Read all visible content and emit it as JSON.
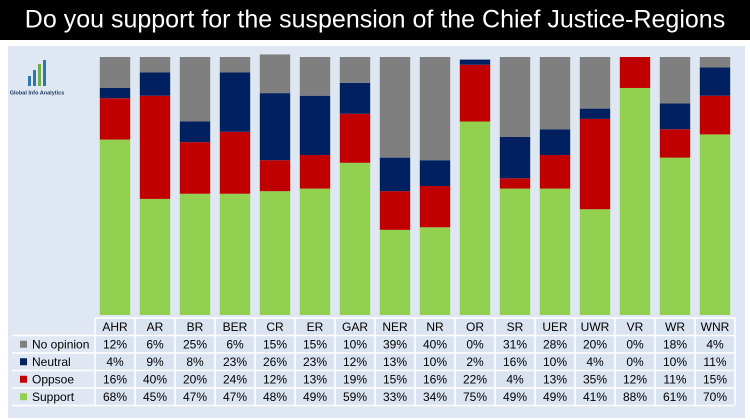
{
  "chart_data": {
    "type": "stacked-bar-table",
    "title": "Do you support for the suspension of the Chief Justice-Regions",
    "logo": "Global Info Analytics",
    "categories": [
      "AHR",
      "AR",
      "BR",
      "BER",
      "CR",
      "ER",
      "GAR",
      "NER",
      "NR",
      "OR",
      "SR",
      "UER",
      "UWR",
      "VR",
      "WR",
      "WNR"
    ],
    "ylim": [
      0,
      100
    ],
    "series": [
      {
        "name": "No opinion",
        "color": "#7f7f7f",
        "values": [
          12,
          6,
          25,
          6,
          15,
          15,
          10,
          39,
          40,
          0,
          31,
          28,
          20,
          0,
          18,
          4
        ],
        "value_labels": [
          "12%",
          "6%",
          "25%",
          "6%",
          "15%",
          "15%",
          "10%",
          "39%",
          "40%",
          "0%",
          "31%",
          "28%",
          "20%",
          "0%",
          "18%",
          "4%"
        ]
      },
      {
        "name": "Neutral",
        "color": "#002060",
        "values": [
          4,
          9,
          8,
          23,
          26,
          23,
          12,
          13,
          10,
          2,
          16,
          10,
          4,
          0,
          10,
          11
        ],
        "value_labels": [
          "4%",
          "9%",
          "8%",
          "23%",
          "26%",
          "23%",
          "12%",
          "13%",
          "10%",
          "2%",
          "16%",
          "10%",
          "4%",
          "0%",
          "10%",
          "11%"
        ]
      },
      {
        "name": "Oppsoe",
        "color": "#c00000",
        "values": [
          16,
          40,
          20,
          24,
          12,
          13,
          19,
          15,
          16,
          22,
          4,
          13,
          35,
          12,
          11,
          15
        ],
        "value_labels": [
          "16%",
          "40%",
          "20%",
          "24%",
          "12%",
          "13%",
          "19%",
          "15%",
          "16%",
          "22%",
          "4%",
          "13%",
          "35%",
          "12%",
          "11%",
          "15%"
        ]
      },
      {
        "name": "Support",
        "color": "#92d050",
        "values": [
          68,
          45,
          47,
          47,
          48,
          49,
          59,
          33,
          34,
          75,
          49,
          49,
          41,
          88,
          61,
          70
        ],
        "value_labels": [
          "68%",
          "45%",
          "47%",
          "47%",
          "48%",
          "49%",
          "59%",
          "33%",
          "34%",
          "75%",
          "49%",
          "49%",
          "41%",
          "88%",
          "61%",
          "70%"
        ]
      }
    ]
  }
}
